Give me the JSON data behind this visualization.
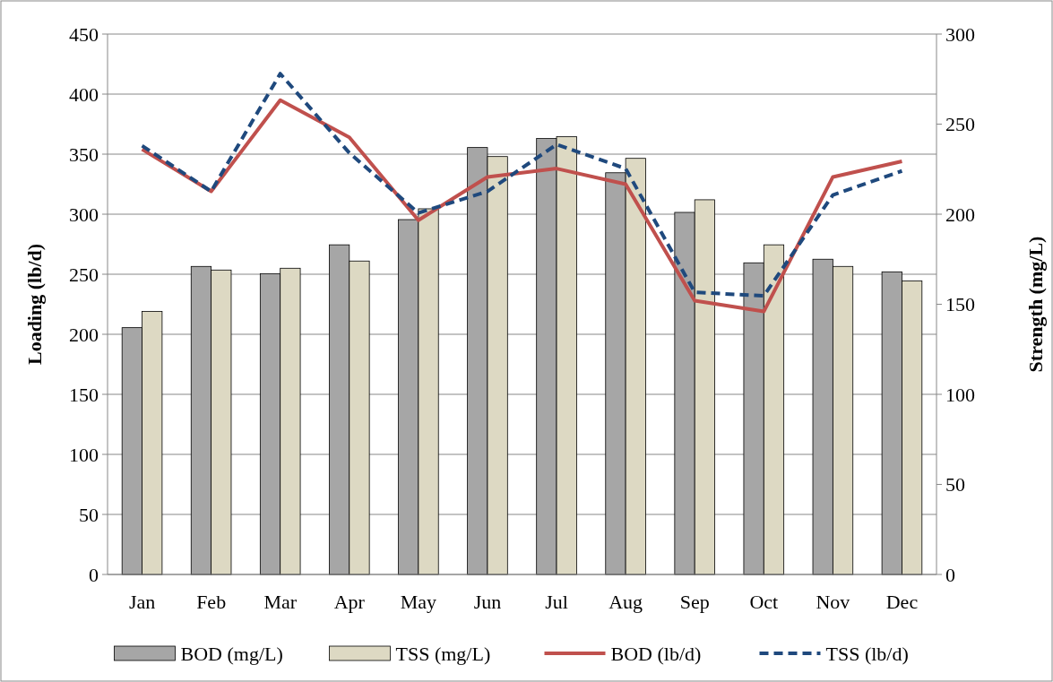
{
  "chart_data": {
    "type": "bar",
    "categories": [
      "Jan",
      "Feb",
      "Mar",
      "Apr",
      "May",
      "Jun",
      "Jul",
      "Aug",
      "Sep",
      "Oct",
      "Nov",
      "Dec"
    ],
    "ylabel": "Loading (lb/d)",
    "y2label": "Strength (mg/L)",
    "ylim": [
      0,
      450
    ],
    "yticks": [
      0,
      50,
      100,
      150,
      200,
      250,
      300,
      350,
      400,
      450
    ],
    "y2lim": [
      0,
      300
    ],
    "y2ticks": [
      0,
      50,
      100,
      150,
      200,
      250,
      300
    ],
    "grid": "y",
    "legend": "bottom",
    "series": [
      {
        "name": "BOD (mg/L)",
        "axis": "y2",
        "color": "#a6a6a6",
        "values": [
          137,
          171,
          167,
          183,
          197,
          237,
          242,
          223,
          201,
          173,
          175,
          168
        ]
      },
      {
        "name": "TSS (mg/L)",
        "axis": "y2",
        "color": "#ddd9c3",
        "values": [
          146,
          169,
          170,
          174,
          203,
          232,
          243,
          231,
          208,
          183,
          171,
          163
        ]
      },
      {
        "name": "BOD (lb/d)",
        "type": "line",
        "axis": "y",
        "color": "#c0504d",
        "line_style": "solid",
        "marker": "none",
        "values": [
          354,
          319,
          395,
          364,
          295,
          331,
          338,
          325,
          228,
          219,
          331,
          344
        ]
      },
      {
        "name": "TSS (lb/d)",
        "type": "line",
        "axis": "y",
        "color": "#1f497d",
        "line_style": "dashed",
        "marker": "none",
        "values": [
          357,
          319,
          417,
          351,
          301,
          319,
          358,
          338,
          235,
          232,
          316,
          336
        ]
      }
    ]
  }
}
